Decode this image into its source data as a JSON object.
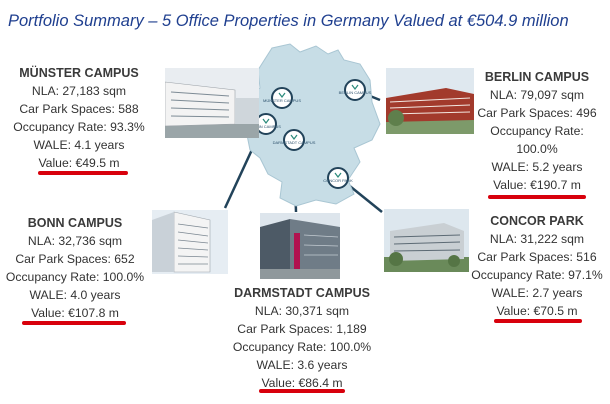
{
  "title": "Portfolio Summary – 5 Office Properties in Germany Valued at €504.9 million",
  "colors": {
    "title": "#1f3f8f",
    "underline": "#d8000c",
    "map_fill": "#c7dde6",
    "connector": "#22435a"
  },
  "properties": {
    "muenster": {
      "name": "MÜNSTER CAMPUS",
      "nla": "NLA: 27,183 sqm",
      "parking": "Car Park Spaces: 588",
      "occupancy": "Occupancy Rate: 93.3%",
      "wale": "WALE: 4.1 years",
      "value": "Value: €49.5 m",
      "pin": "MÜNSTER CAMPUS"
    },
    "berlin": {
      "name": "BERLIN CAMPUS",
      "nla": "NLA: 79,097 sqm",
      "parking": "Car Park Spaces: 496",
      "occupancy_1": "Occupancy Rate:",
      "occupancy_2": "100.0%",
      "wale": "WALE: 5.2 years",
      "value": "Value: €190.7 m",
      "pin": "BERLIN CAMPUS"
    },
    "bonn": {
      "name": "BONN CAMPUS",
      "nla": "NLA: 32,736 sqm",
      "parking": "Car Park Spaces: 652",
      "occupancy": "Occupancy Rate: 100.0%",
      "wale": "WALE: 4.0 years",
      "value": "Value: €107.8 m",
      "pin": "BONN CAMPUS"
    },
    "darmstadt": {
      "name": "DARMSTADT CAMPUS",
      "nla": "NLA: 30,371 sqm",
      "parking": "Car Park Spaces: 1,189",
      "occupancy": "Occupancy Rate: 100.0%",
      "wale": "WALE: 3.6 years",
      "value": "Value: €86.4 m",
      "pin": "DARMSTADT CAMPUS"
    },
    "concor": {
      "name": "CONCOR PARK",
      "nla": "NLA: 31,222 sqm",
      "parking": "Car Park Spaces: 516",
      "occupancy": "Occupancy Rate: 97.1%",
      "wale": "WALE: 2.7 years",
      "value": "Value: €70.5 m",
      "pin": "CONCOR PARK"
    }
  }
}
